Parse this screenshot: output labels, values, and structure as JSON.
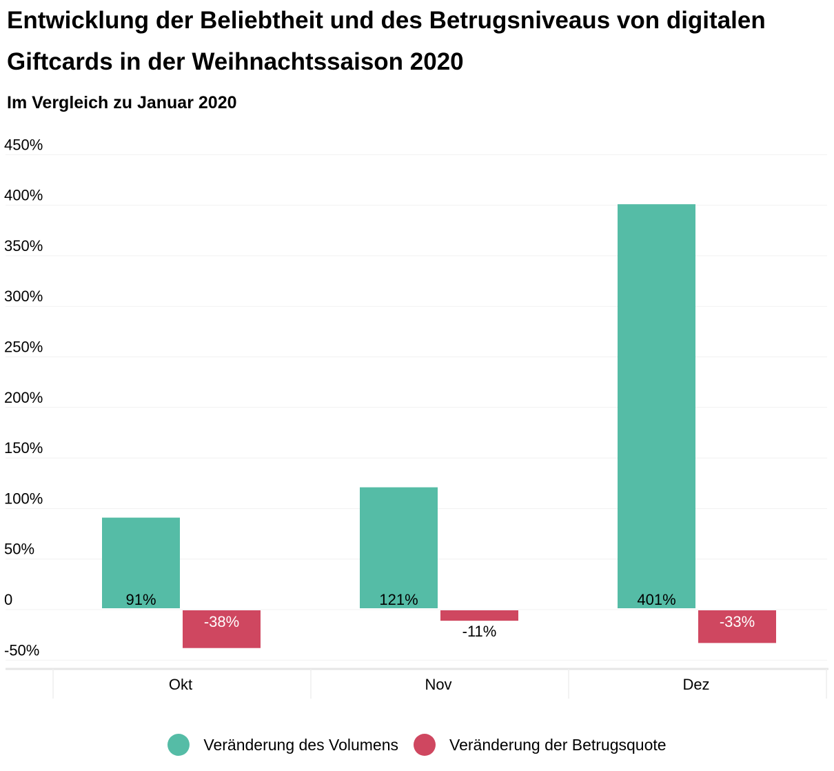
{
  "chart_data": {
    "type": "bar",
    "title": "Entwicklung der Beliebtheit und des Betrugsniveaus von digitalen Giftcards in der Weihnachtssaison 2020",
    "subtitle": "Im Vergleich zu Januar 2020",
    "xlabel": "",
    "ylabel": "",
    "categories": [
      "Okt",
      "Nov",
      "Dez"
    ],
    "series": [
      {
        "name": "Veränderung des Volumens",
        "color": "#55bca6",
        "values": [
          91,
          121,
          401
        ],
        "labels": [
          "91%",
          "121%",
          "401%"
        ],
        "label_color": "#000000"
      },
      {
        "name": "Veränderung der Betrugsquote",
        "color": "#cf4760",
        "values": [
          -38,
          -11,
          -33
        ],
        "labels": [
          "-38%",
          "-11%",
          "-33%"
        ],
        "label_colors": [
          "#ffffff",
          "#000000",
          "#ffffff"
        ]
      }
    ],
    "ylim": [
      -50,
      450
    ],
    "yticks": [
      450,
      400,
      350,
      300,
      250,
      200,
      150,
      100,
      50,
      0,
      -50
    ],
    "ytick_labels": [
      "450%",
      "400%",
      "350%",
      "300%",
      "250%",
      "200%",
      "150%",
      "100%",
      "50%",
      "0",
      "-50%"
    ],
    "grid": true,
    "legend_position": "bottom"
  }
}
